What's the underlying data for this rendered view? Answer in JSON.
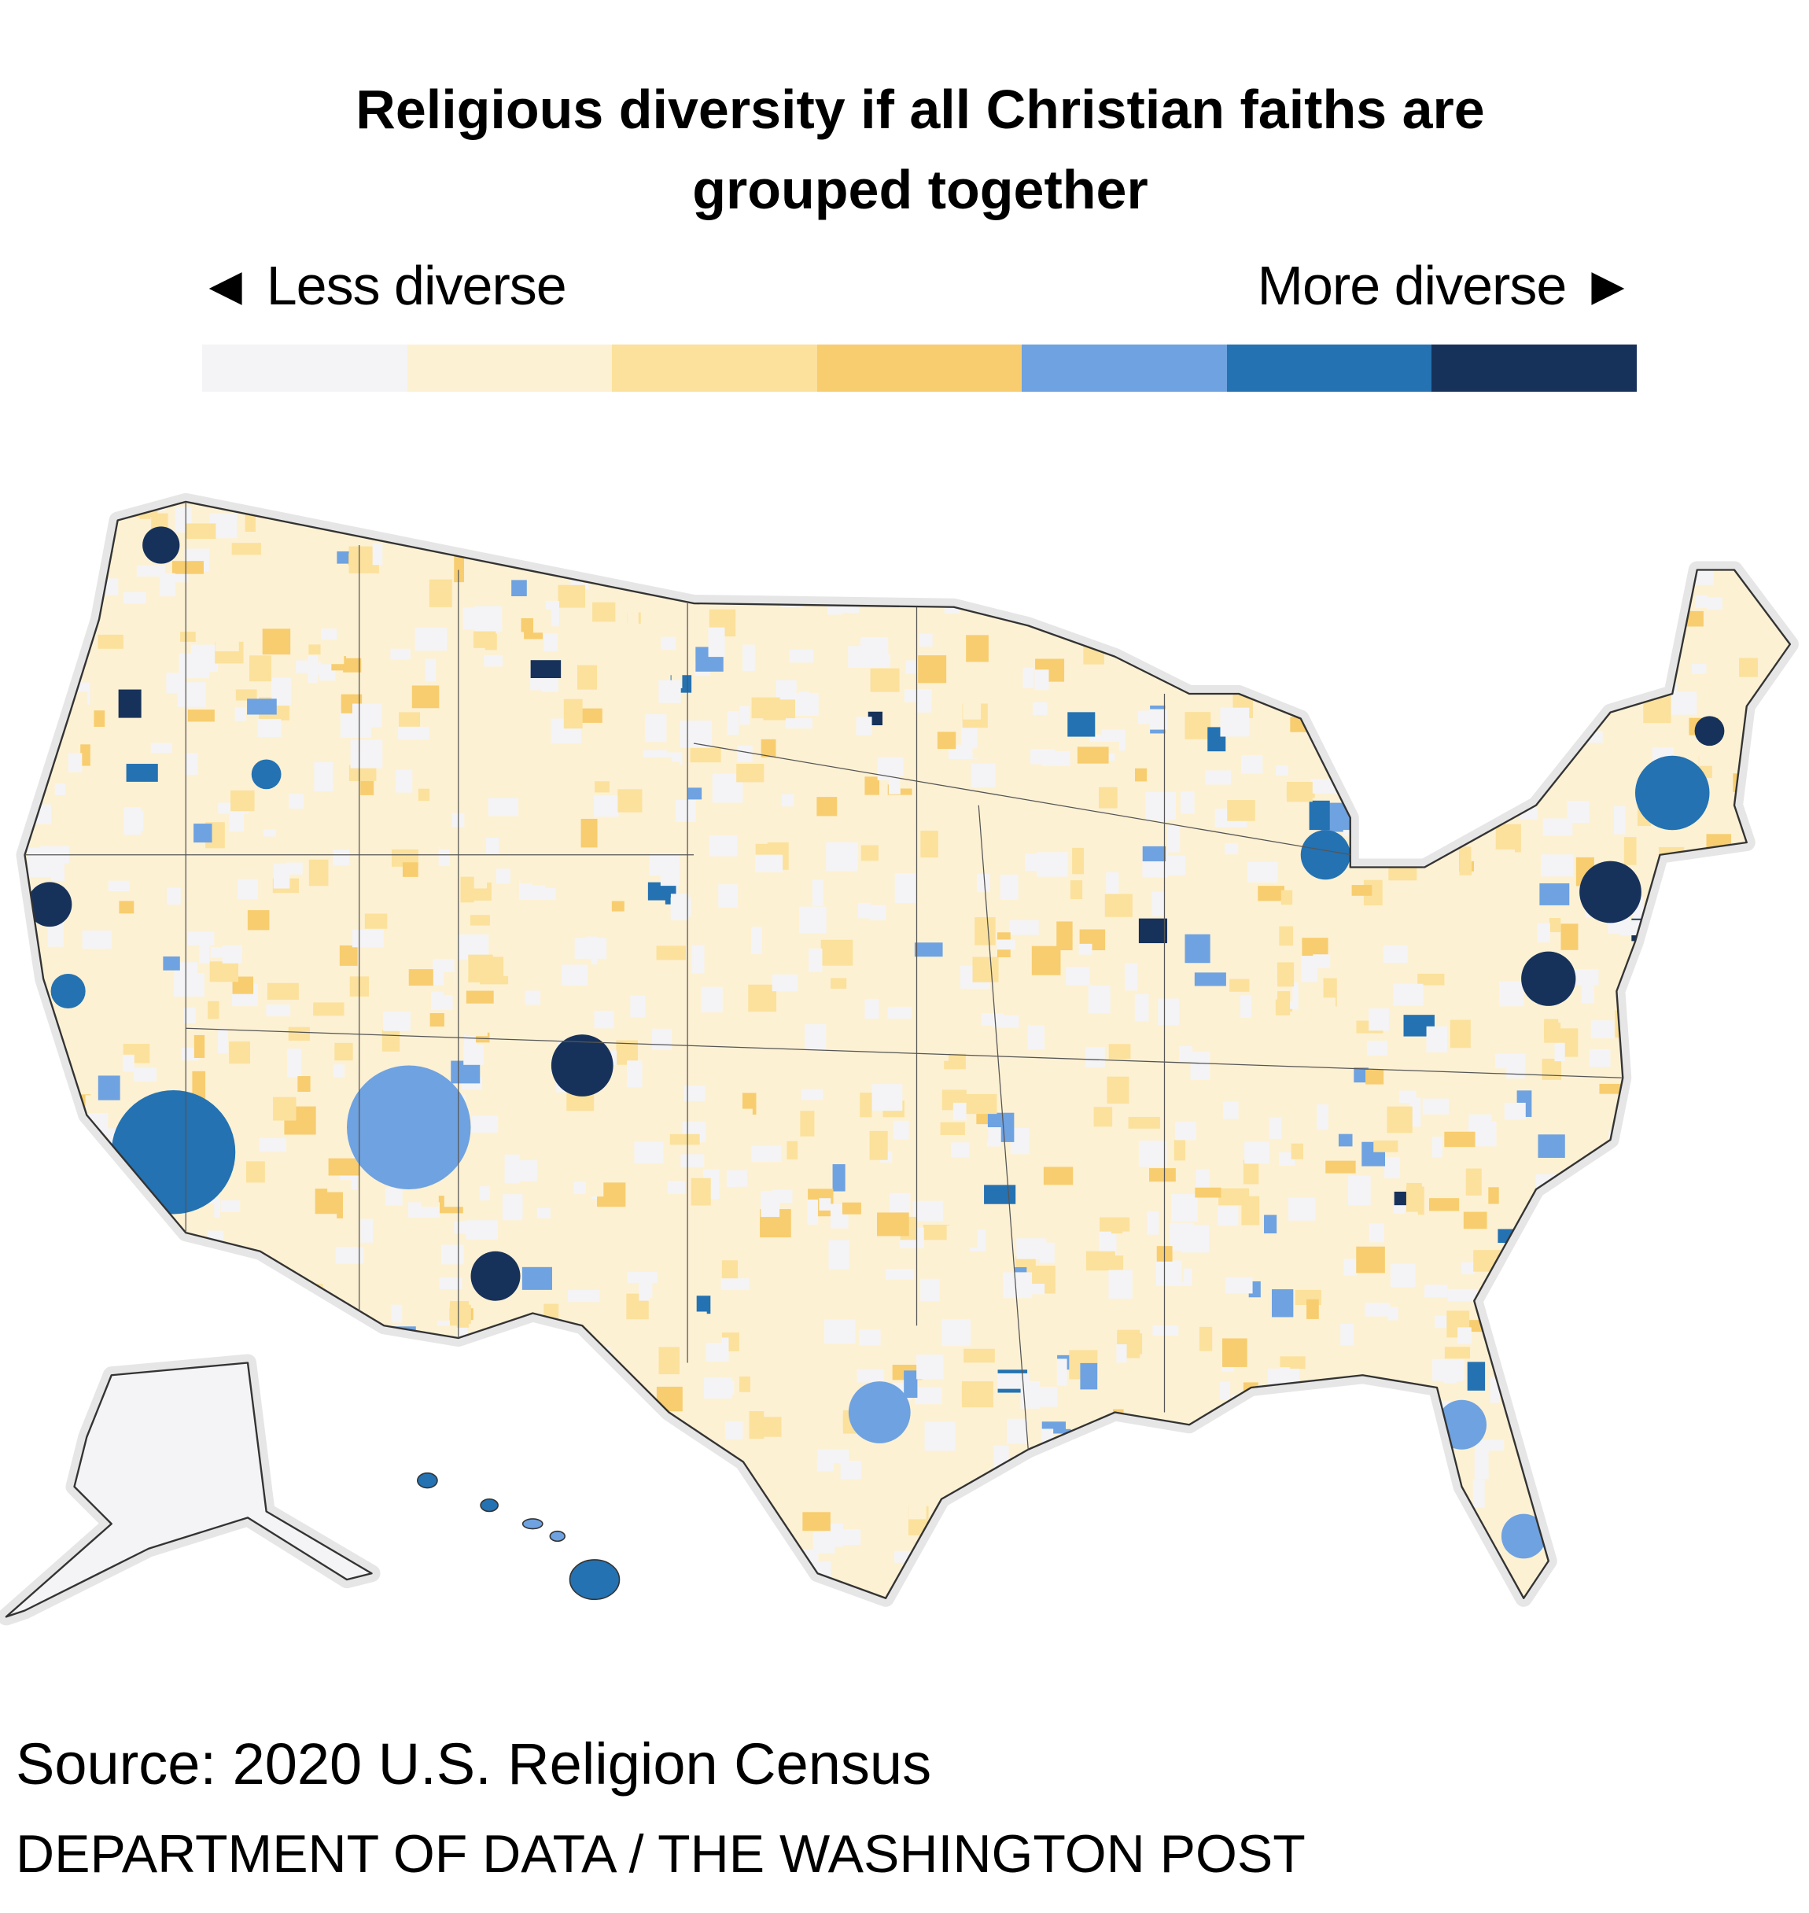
{
  "title": "Religious diversity if all Christian faiths are grouped together",
  "legend": {
    "left_label": "◄ Less diverse",
    "right_label": "More diverse ►",
    "colors": [
      "#f4f4f6",
      "#fdf1d4",
      "#fbe19c",
      "#f7cd6f",
      "#6fa2e0",
      "#2472b2",
      "#17325a"
    ]
  },
  "map": {
    "region": "United States counties",
    "base_fill": "#f4f4f6",
    "halo_color": "#e6e6e6",
    "border_color": "#333333"
  },
  "footer": {
    "source": "Source: 2020 U.S. Religion Census",
    "credit": "DEPARTMENT OF DATA / THE WASHINGTON POST"
  }
}
